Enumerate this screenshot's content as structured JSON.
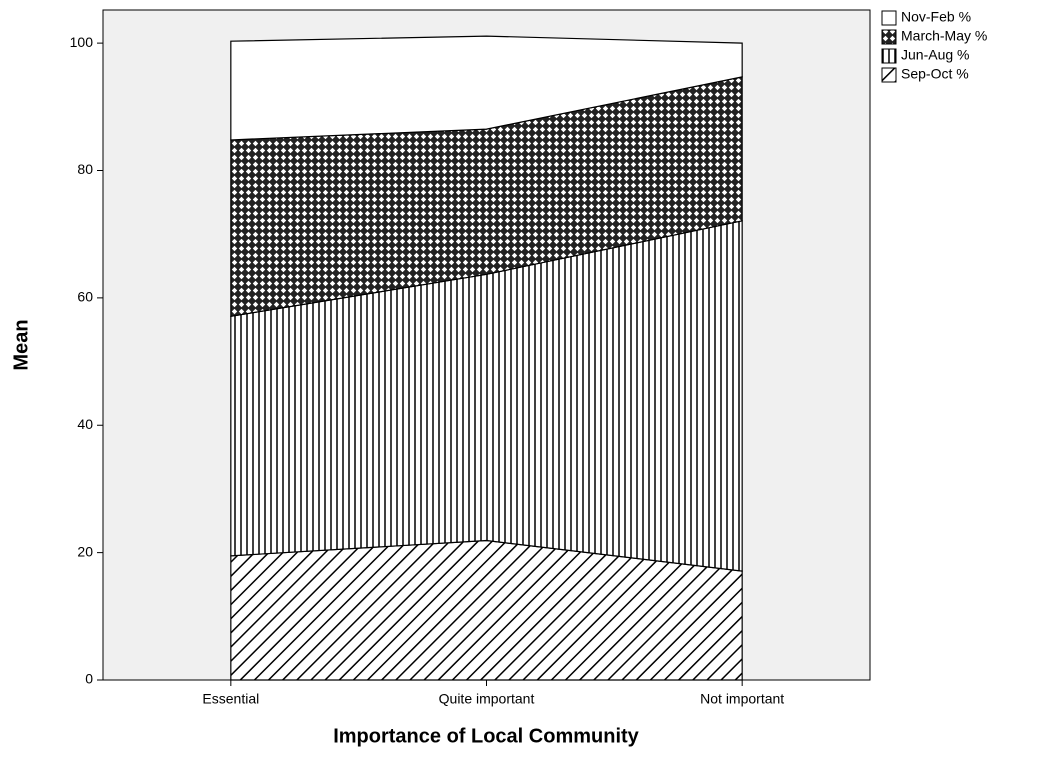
{
  "chart_data": {
    "type": "stacked_area",
    "x_label": "Importance of Local Community",
    "y_label": "Mean",
    "categories": [
      "Essential",
      "Quite important",
      "Not important"
    ],
    "series": [
      {
        "name": "Sep-Oct %",
        "color": "#000000",
        "pattern": "diagonal",
        "values": [
          19.5,
          21.9,
          17.1
        ]
      },
      {
        "name": "Jun-Aug %",
        "color": "#000000",
        "pattern": "vertical",
        "values": [
          37.6,
          41.8,
          55.0
        ]
      },
      {
        "name": "March-May %",
        "color": "#000000",
        "pattern": "crosshatch",
        "values": [
          27.7,
          22.8,
          22.6
        ]
      },
      {
        "name": "Nov-Feb %",
        "color": "#000000",
        "pattern": "none",
        "values": [
          15.5,
          14.6,
          5.3
        ]
      }
    ],
    "ylim": [
      0,
      105.2
    ],
    "yticks": [
      0,
      20,
      40,
      60,
      80,
      100
    ],
    "background": "#f0f0f0",
    "legend": "right"
  }
}
